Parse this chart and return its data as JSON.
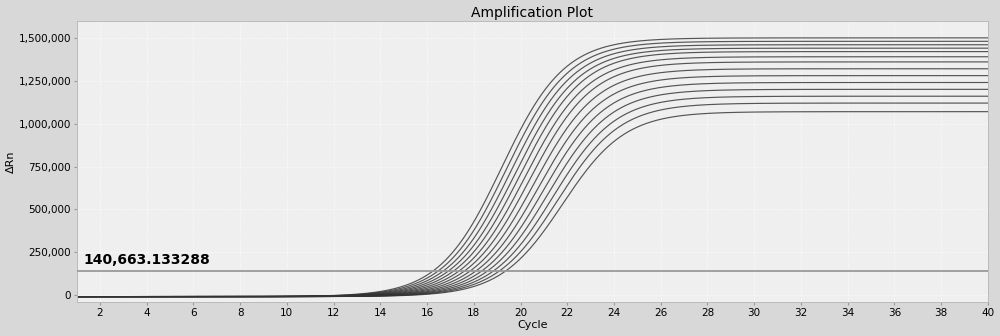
{
  "title": "Amplification Plot",
  "xlabel": "Cycle",
  "ylabel": "ΔRn",
  "xlim": [
    1,
    40
  ],
  "ylim": [
    -40000,
    1600000
  ],
  "xticks": [
    2,
    4,
    6,
    8,
    10,
    12,
    14,
    16,
    18,
    20,
    22,
    24,
    26,
    28,
    30,
    32,
    34,
    36,
    38,
    40
  ],
  "yticks": [
    0,
    250000,
    500000,
    750000,
    1000000,
    1250000,
    1500000
  ],
  "ytick_labels": [
    "0",
    "250,000",
    "500,000",
    "750,000",
    "1,000,000",
    "1,250,000",
    "1,500,000"
  ],
  "threshold": 140663.133288,
  "threshold_label": "140,663.133288",
  "num_curves": 14,
  "background_color": "#d8d8d8",
  "plot_bg_color": "#efefef",
  "grid_color": "#ffffff",
  "line_color": "#333333",
  "threshold_color": "#999999",
  "sigmoid_midpoints": [
    19.2,
    19.4,
    19.6,
    19.8,
    20.0,
    20.2,
    20.4,
    20.6,
    20.8,
    21.0,
    21.2,
    21.4,
    21.6,
    21.8
  ],
  "sigmoid_max_values": [
    1500000,
    1480000,
    1460000,
    1440000,
    1420000,
    1390000,
    1360000,
    1320000,
    1280000,
    1240000,
    1200000,
    1160000,
    1120000,
    1070000
  ],
  "sigmoid_steepness": 0.75,
  "baseline": -8000,
  "title_fontsize": 10,
  "axis_fontsize": 8,
  "tick_fontsize": 7.5,
  "line_width": 0.85,
  "threshold_lw": 1.3
}
